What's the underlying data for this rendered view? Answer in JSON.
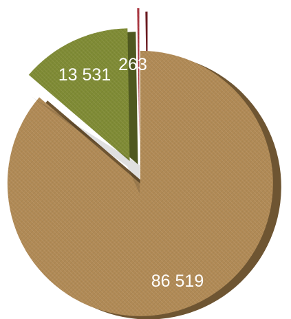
{
  "chart_data": {
    "type": "pie",
    "style": "3d-exploded",
    "labels": [
      "86 519",
      "13 531",
      "263"
    ],
    "values": [
      86519,
      13531,
      263
    ],
    "colors": {
      "slice_0": "#b08a56",
      "slice_0_side": "#6e5532",
      "slice_1": "#7f8b35",
      "slice_1_side": "#4f5820",
      "slice_2": "#a8323c",
      "slice_2_side": "#6a1a20"
    }
  }
}
